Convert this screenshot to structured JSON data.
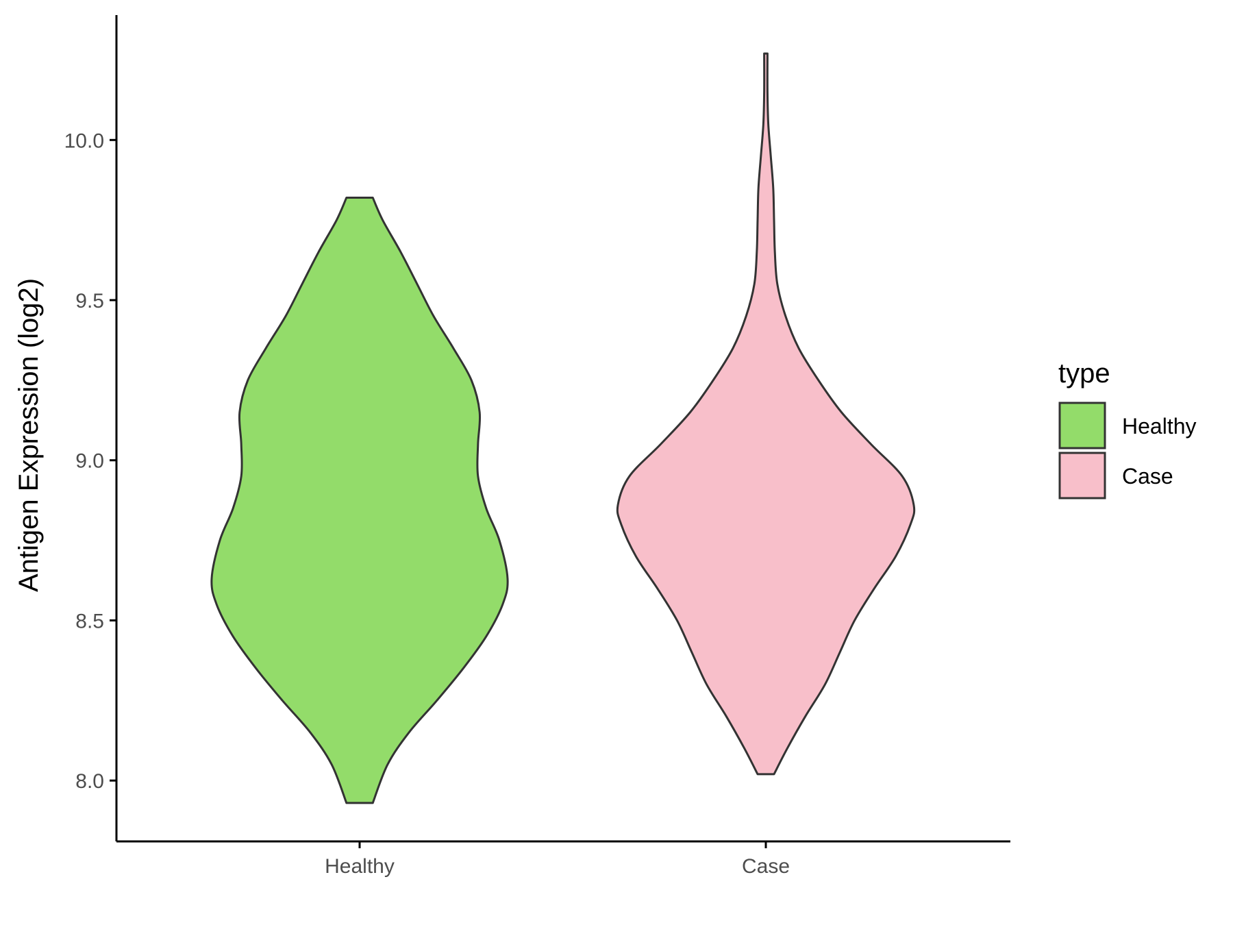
{
  "chart_data": {
    "type": "violin",
    "title": "",
    "xlabel": "",
    "ylabel": "Antigen Expression (log2)",
    "ylim": [
      7.81,
      10.39
    ],
    "yticks": [
      "8.0",
      "8.5",
      "9.0",
      "9.5",
      "10.0"
    ],
    "categories": [
      "Healthy",
      "Case"
    ],
    "grid": false,
    "legend": {
      "title": "type",
      "position": "right",
      "entries": [
        {
          "label": "Healthy",
          "color": "#93dc6a"
        },
        {
          "label": "Case",
          "color": "#f8bfca"
        }
      ]
    },
    "series": [
      {
        "category": "Healthy",
        "color": "#93dc6a",
        "min": 7.93,
        "max": 9.82,
        "profile": [
          [
            7.93,
            0.08
          ],
          [
            8.05,
            0.17
          ],
          [
            8.15,
            0.3
          ],
          [
            8.25,
            0.47
          ],
          [
            8.35,
            0.63
          ],
          [
            8.45,
            0.77
          ],
          [
            8.55,
            0.87
          ],
          [
            8.63,
            0.9
          ],
          [
            8.75,
            0.85
          ],
          [
            8.85,
            0.77
          ],
          [
            8.95,
            0.72
          ],
          [
            9.05,
            0.72
          ],
          [
            9.15,
            0.73
          ],
          [
            9.25,
            0.68
          ],
          [
            9.35,
            0.57
          ],
          [
            9.45,
            0.45
          ],
          [
            9.55,
            0.35
          ],
          [
            9.65,
            0.25
          ],
          [
            9.75,
            0.14
          ],
          [
            9.82,
            0.08
          ]
        ]
      },
      {
        "category": "Case",
        "color": "#f8bfca",
        "min": 8.02,
        "max": 10.27,
        "profile": [
          [
            8.02,
            0.05
          ],
          [
            8.1,
            0.13
          ],
          [
            8.2,
            0.24
          ],
          [
            8.3,
            0.36
          ],
          [
            8.4,
            0.45
          ],
          [
            8.5,
            0.54
          ],
          [
            8.6,
            0.66
          ],
          [
            8.7,
            0.79
          ],
          [
            8.8,
            0.88
          ],
          [
            8.86,
            0.9
          ],
          [
            8.95,
            0.83
          ],
          [
            9.05,
            0.64
          ],
          [
            9.15,
            0.46
          ],
          [
            9.25,
            0.32
          ],
          [
            9.35,
            0.2
          ],
          [
            9.45,
            0.12
          ],
          [
            9.55,
            0.07
          ],
          [
            9.65,
            0.055
          ],
          [
            9.75,
            0.05
          ],
          [
            9.85,
            0.045
          ],
          [
            9.95,
            0.03
          ],
          [
            10.05,
            0.015
          ],
          [
            10.15,
            0.01
          ],
          [
            10.27,
            0.01
          ]
        ]
      }
    ]
  }
}
